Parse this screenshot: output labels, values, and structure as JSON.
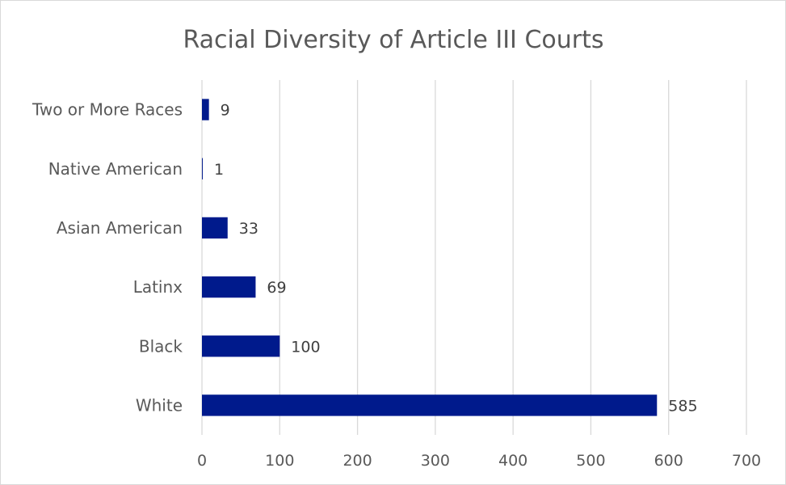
{
  "chart_data": {
    "type": "bar",
    "orientation": "horizontal",
    "title": "Racial Diversity of Article III Courts",
    "categories": [
      "White",
      "Black",
      "Latinx",
      "Asian American",
      "Native American",
      "Two or More Races"
    ],
    "values": [
      585,
      100,
      69,
      33,
      1,
      9
    ],
    "xlim": [
      0,
      700
    ],
    "x_ticks": [
      0,
      100,
      200,
      300,
      400,
      500,
      600,
      700
    ],
    "grid": true,
    "legend": false,
    "bar_color": "#001a8c",
    "data_labels": true
  }
}
